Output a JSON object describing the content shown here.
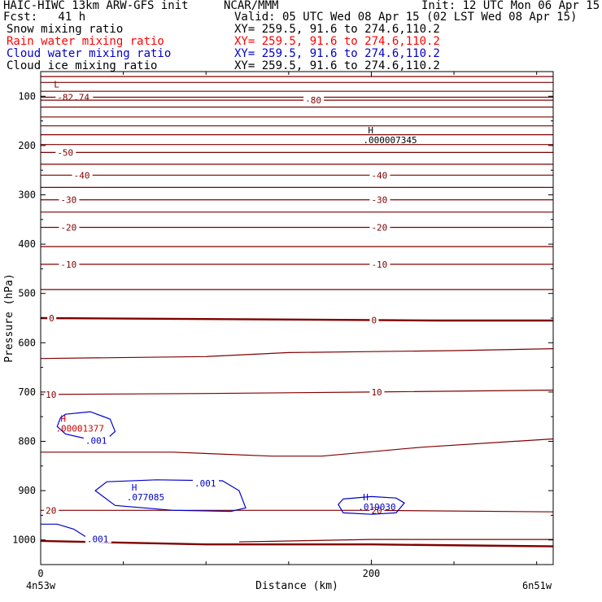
{
  "header": {
    "title": "HAIC-HIWC 13km ARW-GFS init",
    "org": "NCAR/MMM",
    "init": "Init: 12 UTC Mon 06 Apr 15",
    "fcst": "Fcst:   41 h",
    "valid": "Valid: 05 UTC Wed 08 Apr 15 (02 LST Wed 08 Apr 15)"
  },
  "fields": [
    {
      "name": "Snow mixing ratio",
      "xy": "XY= 259.5, 91.6 to 274.6,110.2",
      "color": "#000000"
    },
    {
      "name": "Rain water mixing ratio",
      "xy": "XY= 259.5, 91.6 to 274.6,110.2",
      "color": "#ff0000"
    },
    {
      "name": "Cloud water mixing ratio",
      "xy": "XY= 259.5, 91.6 to 274.6,110.2",
      "color": "#0000cc"
    },
    {
      "name": "Cloud ice mixing ratio",
      "xy": "XY= 259.5, 91.6 to 274.6,110.2",
      "color": "#000000"
    }
  ],
  "chart_data": {
    "type": "line",
    "xlabel": "Distance (km)",
    "ylabel": "Pressure (hPa)",
    "xlim": [
      0,
      310
    ],
    "ylim": [
      1050,
      50
    ],
    "x_ticks": [
      0,
      200
    ],
    "x_minor_ticks": [
      50,
      100,
      150,
      250,
      300
    ],
    "y_ticks": [
      100,
      200,
      300,
      400,
      500,
      600,
      700,
      800,
      900,
      1000
    ],
    "x_endpoints": {
      "left": "4n53w",
      "right": "6n51w"
    },
    "temperature_color": "#800000",
    "cloud_color": "#0000cc",
    "rain_color": "#cc0000",
    "temperature_lines": [
      {
        "x": [
          0,
          310
        ],
        "p": [
          60,
          60
        ]
      },
      {
        "x": [
          0,
          310
        ],
        "p": [
          72,
          72
        ]
      },
      {
        "x": [
          0,
          310
        ],
        "p": [
          90,
          90
        ]
      },
      {
        "x": [
          0,
          310
        ],
        "p": [
          102,
          102
        ],
        "label": "-82.74",
        "label_x": [
          10
        ]
      },
      {
        "x": [
          0,
          310
        ],
        "p": [
          108,
          108
        ],
        "label": "-80",
        "label_x": [
          160
        ]
      },
      {
        "x": [
          0,
          310
        ],
        "p": [
          122,
          122
        ]
      },
      {
        "x": [
          0,
          310
        ],
        "p": [
          142,
          142
        ]
      },
      {
        "x": [
          0,
          310
        ],
        "p": [
          160,
          160
        ]
      },
      {
        "x": [
          0,
          310
        ],
        "p": [
          178,
          178
        ]
      },
      {
        "x": [
          0,
          310
        ],
        "p": [
          198,
          198
        ]
      },
      {
        "x": [
          0,
          310
        ],
        "p": [
          214,
          214
        ],
        "label": "-50",
        "label_x": [
          10
        ]
      },
      {
        "x": [
          0,
          310
        ],
        "p": [
          238,
          238
        ]
      },
      {
        "x": [
          0,
          310
        ],
        "p": [
          260,
          260
        ],
        "label": "-40",
        "label_x": [
          20,
          200
        ]
      },
      {
        "x": [
          0,
          310
        ],
        "p": [
          285,
          285
        ]
      },
      {
        "x": [
          0,
          310
        ],
        "p": [
          310,
          310
        ],
        "label": "-30",
        "label_x": [
          12,
          200
        ]
      },
      {
        "x": [
          0,
          310
        ],
        "p": [
          335,
          335
        ]
      },
      {
        "x": [
          0,
          310
        ],
        "p": [
          366,
          366
        ],
        "label": "-20",
        "label_x": [
          12,
          200
        ]
      },
      {
        "x": [
          0,
          310
        ],
        "p": [
          405,
          405
        ]
      },
      {
        "x": [
          0,
          310
        ],
        "p": [
          441,
          441
        ],
        "label": "-10",
        "label_x": [
          12,
          200
        ]
      },
      {
        "x": [
          0,
          310
        ],
        "p": [
          492,
          492
        ]
      },
      {
        "x": [
          0,
          100,
          200,
          240,
          310
        ],
        "p": [
          550,
          552,
          554,
          555,
          555
        ],
        "label": "0",
        "label_x": [
          5,
          200
        ],
        "bold": true
      },
      {
        "x": [
          0,
          100,
          150,
          200,
          250,
          310
        ],
        "p": [
          632,
          628,
          620,
          618,
          616,
          612
        ]
      },
      {
        "x": [
          0,
          100,
          200,
          310
        ],
        "p": [
          705,
          703,
          700,
          696
        ],
        "label": "10",
        "label_x": [
          3,
          200
        ]
      },
      {
        "x": [
          0,
          80,
          140,
          170,
          230,
          310
        ],
        "p": [
          822,
          822,
          830,
          830,
          812,
          795
        ]
      },
      {
        "x": [
          0,
          100,
          200,
          310
        ],
        "p": [
          940,
          940,
          940,
          943
        ],
        "label": "20",
        "label_x": [
          3,
          200
        ]
      },
      {
        "x": [
          120,
          200,
          310
        ],
        "p": [
          1004,
          999,
          999
        ]
      },
      {
        "x": [
          0,
          100,
          200,
          310
        ],
        "p": [
          1002,
          1009,
          1009,
          1013
        ],
        "bold": true
      }
    ],
    "extremes": [
      {
        "type": "L",
        "label": "L",
        "value": "-82.74",
        "x": 8,
        "p": 82,
        "color": "#800000"
      },
      {
        "type": "H",
        "label": "H",
        "value": ".000007345",
        "x": 198,
        "p": 175,
        "color": "#000000"
      },
      {
        "type": "H",
        "label": "H",
        "value": ".00001377",
        "x": 12,
        "p": 760,
        "color": "#cc0000"
      },
      {
        "type": "H",
        "label": "H",
        "value": ".077085",
        "x": 55,
        "p": 900,
        "color": "#0000cc"
      },
      {
        "type": "H",
        "label": "H",
        "value": ".019030",
        "x": 195,
        "p": 920,
        "color": "#0000cc"
      }
    ],
    "cloud_contours": [
      {
        "label": ".001",
        "label_x": 27,
        "label_p": 798,
        "x": [
          15,
          30,
          42,
          45,
          40,
          28,
          15,
          10,
          12
        ],
        "p": [
          745,
          740,
          755,
          780,
          795,
          795,
          785,
          770,
          752
        ],
        "closed": true
      },
      {
        "label": ".001",
        "label_x": 93,
        "label_p": 885,
        "x": [
          40,
          70,
          110,
          120,
          124,
          115,
          80,
          45,
          33,
          40
        ],
        "p": [
          882,
          878,
          880,
          900,
          935,
          942,
          940,
          930,
          900,
          882
        ],
        "closed": true
      },
      {
        "label": "",
        "label_x": 0,
        "label_p": 0,
        "x": [
          183,
          200,
          215,
          220,
          215,
          200,
          183,
          180
        ],
        "p": [
          917,
          912,
          915,
          925,
          945,
          948,
          945,
          928
        ],
        "closed": true
      },
      {
        "label": ".001",
        "label_x": 28,
        "label_p": 998,
        "x": [
          0,
          10,
          20,
          28
        ],
        "p": [
          968,
          968,
          978,
          995
        ],
        "closed": false
      }
    ]
  }
}
